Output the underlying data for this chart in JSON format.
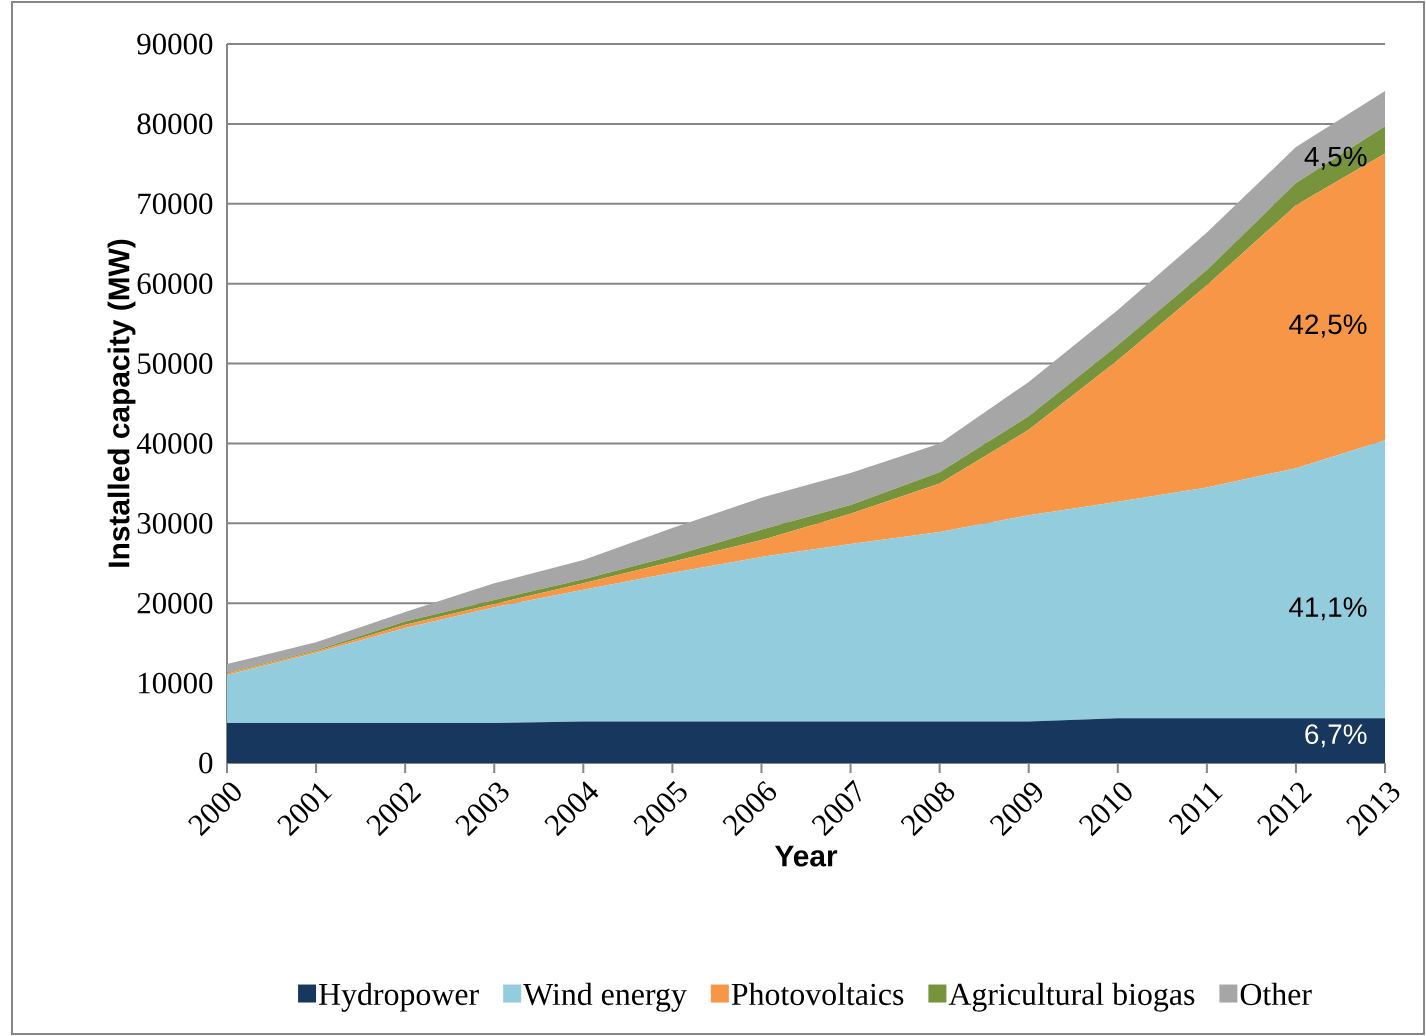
{
  "chart_data": {
    "type": "area",
    "stacked": true,
    "xlabel": "Year",
    "ylabel": "Installed capacity (MW)",
    "categories": [
      "2000",
      "2001",
      "2002",
      "2003",
      "2004",
      "2005",
      "2006",
      "2007",
      "2008",
      "2009",
      "2010",
      "2011",
      "2012",
      "2013"
    ],
    "series": [
      {
        "name": "Hydropower",
        "color": "#17375e",
        "values": [
          5000,
          5000,
          5000,
          5000,
          5200,
          5200,
          5200,
          5200,
          5200,
          5200,
          5600,
          5600,
          5600,
          5600
        ]
      },
      {
        "name": "Wind energy",
        "color": "#93cddd",
        "values": [
          6000,
          8800,
          11900,
          14500,
          16500,
          18600,
          20600,
          22200,
          23700,
          25800,
          27100,
          28900,
          31300,
          34800
        ]
      },
      {
        "name": "Photovoltaics",
        "color": "#f79646",
        "values": [
          200,
          200,
          400,
          400,
          800,
          1400,
          2100,
          3800,
          6100,
          10700,
          17700,
          25300,
          32900,
          35900
        ]
      },
      {
        "name": "Agricultural biogas",
        "color": "#77933c",
        "values": [
          100,
          100,
          400,
          500,
          500,
          700,
          1300,
          1100,
          1400,
          1700,
          1900,
          1900,
          2800,
          3400
        ]
      },
      {
        "name": "Other",
        "color": "#a6a6a6",
        "values": [
          1100,
          1000,
          1200,
          2100,
          2400,
          3500,
          4000,
          4000,
          3600,
          4300,
          4400,
          4700,
          4500,
          4400
        ]
      }
    ],
    "ylim": [
      0,
      90000
    ],
    "yticks": [
      0,
      10000,
      20000,
      30000,
      40000,
      50000,
      60000,
      70000,
      80000,
      90000
    ],
    "grid": "y",
    "legend": "bottom",
    "annotations": [
      {
        "text": "6,7%",
        "x": "2013",
        "y": 3400
      },
      {
        "text": "41,1%",
        "x": "2013",
        "y": 19300
      },
      {
        "text": "42,5%",
        "x": "2013",
        "y": 54700
      },
      {
        "text": "4,5%",
        "x": "2013",
        "y": 75700
      }
    ]
  }
}
